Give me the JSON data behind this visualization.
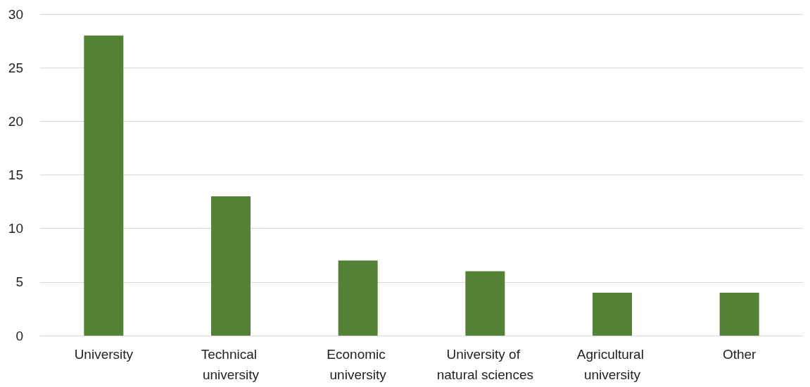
{
  "chart_data": {
    "type": "bar",
    "categories": [
      "University",
      "Technical university",
      "Economic university",
      "University of natural sciences",
      "Agricultural university",
      "Other"
    ],
    "values": [
      28,
      13,
      7,
      6,
      4,
      4
    ],
    "color": "#548235",
    "ylim": [
      0,
      30
    ],
    "yticks": [
      0,
      5,
      10,
      15,
      20,
      25,
      30
    ],
    "grid": "y"
  }
}
